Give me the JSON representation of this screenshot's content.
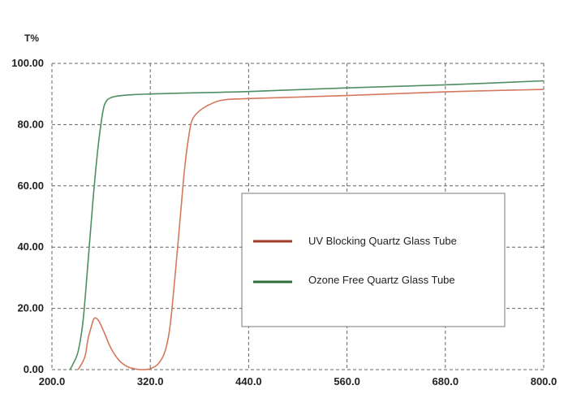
{
  "chart_data": {
    "type": "line",
    "title": "",
    "xlabel": "",
    "ylabel": "T%",
    "xlim": [
      200,
      800
    ],
    "ylim": [
      0,
      100
    ],
    "x_ticks": [
      "200.0",
      "320.0",
      "440.0",
      "560.0",
      "680.0",
      "800.0"
    ],
    "y_ticks": [
      "0.00",
      "20.00",
      "40.00",
      "60.00",
      "80.00",
      "100.00"
    ],
    "grid": true,
    "legend_position": "center-right",
    "series": [
      {
        "name": "UV Blocking Quartz Glass Tube",
        "color": "#d4795c",
        "legend_color": "#a33a25",
        "points": [
          [
            232,
            0
          ],
          [
            240,
            4
          ],
          [
            244,
            10
          ],
          [
            248,
            14
          ],
          [
            251,
            16.5
          ],
          [
            254,
            16.8
          ],
          [
            258,
            15.5
          ],
          [
            264,
            12
          ],
          [
            272,
            7
          ],
          [
            282,
            3
          ],
          [
            292,
            1
          ],
          [
            302,
            0.2
          ],
          [
            310,
            0
          ],
          [
            320,
            0.3
          ],
          [
            330,
            2
          ],
          [
            338,
            6
          ],
          [
            344,
            14
          ],
          [
            350,
            30
          ],
          [
            356,
            48
          ],
          [
            362,
            66
          ],
          [
            368,
            78
          ],
          [
            372,
            82
          ],
          [
            380,
            84.5
          ],
          [
            392,
            86.5
          ],
          [
            408,
            88
          ],
          [
            440,
            88.5
          ],
          [
            560,
            89.5
          ],
          [
            680,
            90.7
          ],
          [
            800,
            91.5
          ]
        ]
      },
      {
        "name": "Ozone Free Quartz Glass Tube",
        "color": "#4e8f62",
        "legend_color": "#2e6e3d",
        "points": [
          [
            222,
            0
          ],
          [
            226,
            2
          ],
          [
            232,
            6
          ],
          [
            238,
            16
          ],
          [
            244,
            35
          ],
          [
            250,
            55
          ],
          [
            256,
            72
          ],
          [
            262,
            84
          ],
          [
            266,
            87.5
          ],
          [
            272,
            88.8
          ],
          [
            282,
            89.4
          ],
          [
            300,
            89.8
          ],
          [
            320,
            90
          ],
          [
            360,
            90.3
          ],
          [
            440,
            90.8
          ],
          [
            560,
            92
          ],
          [
            680,
            93
          ],
          [
            800,
            94.3
          ]
        ]
      }
    ]
  }
}
